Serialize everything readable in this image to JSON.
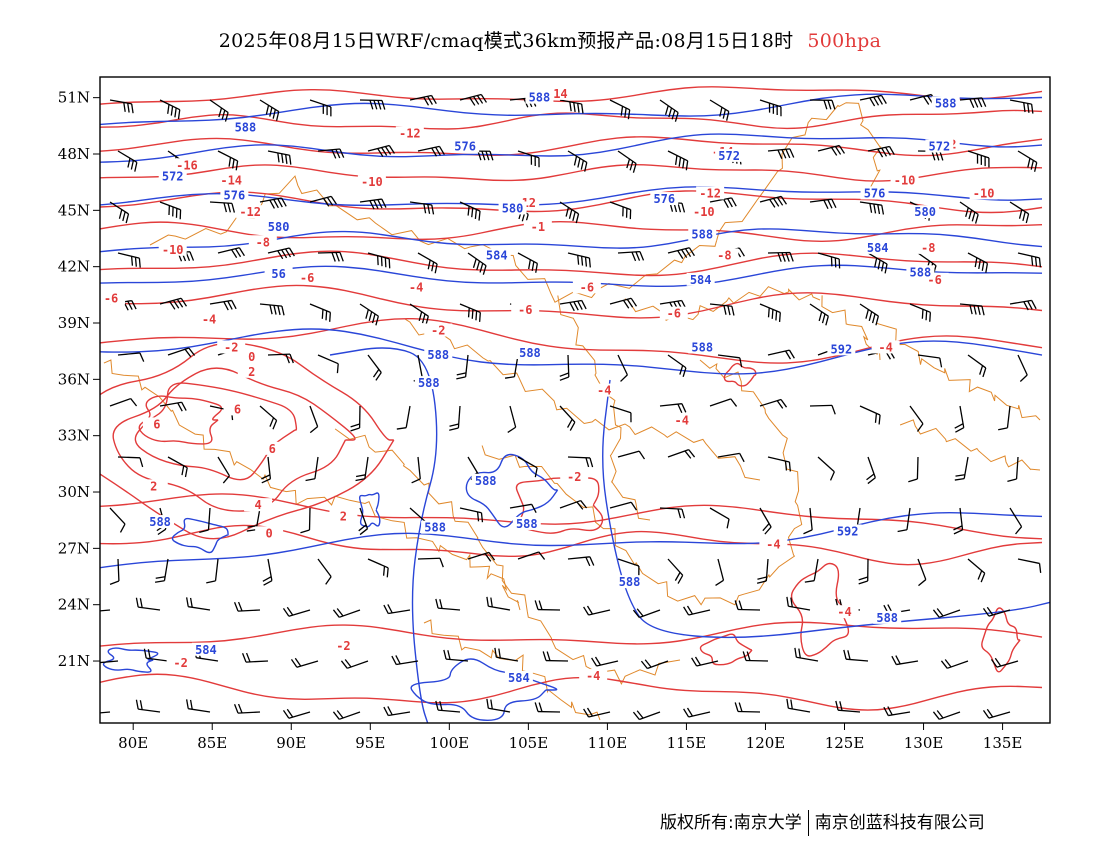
{
  "header": {
    "title": "2025年08月15日WRF/cmaq模式36km预报产品:08月15日18时",
    "level": "500hpa"
  },
  "map": {
    "lat_labels": [
      "51N",
      "48N",
      "45N",
      "42N",
      "39N",
      "36N",
      "33N",
      "30N",
      "27N",
      "24N",
      "21N"
    ],
    "lon_labels": [
      "80E",
      "85E",
      "90E",
      "95E",
      "100E",
      "105E",
      "110E",
      "115E",
      "120E",
      "125E",
      "130E",
      "135E"
    ],
    "colors": {
      "temperature": "#e23b3b",
      "height": "#2a46d8",
      "boundary": "#e0892c",
      "wind": "#000000"
    },
    "temperature_contours": [
      {
        "label": "-14",
        "lon": 106.8,
        "lat": 51.2
      },
      {
        "label": "-12",
        "lon": 97.5,
        "lat": 49.1
      },
      {
        "label": "-14",
        "lon": 117.3,
        "lat": 48.1
      },
      {
        "label": "-12",
        "lon": 131.4,
        "lat": 48.5
      },
      {
        "label": "-16",
        "lon": 83.4,
        "lat": 47.4
      },
      {
        "label": "-14",
        "lon": 86.2,
        "lat": 46.6
      },
      {
        "label": "-10",
        "lon": 95.1,
        "lat": 46.5
      },
      {
        "label": "-10",
        "lon": 128.8,
        "lat": 46.6
      },
      {
        "label": "-12",
        "lon": 116.5,
        "lat": 45.9
      },
      {
        "label": "-10",
        "lon": 133.8,
        "lat": 45.9
      },
      {
        "label": "-12",
        "lon": 104.8,
        "lat": 45.4
      },
      {
        "label": "-12",
        "lon": 87.4,
        "lat": 44.9
      },
      {
        "label": "-10",
        "lon": 116.1,
        "lat": 44.9
      },
      {
        "label": "-1",
        "lon": 105.6,
        "lat": 44.1
      },
      {
        "label": "-10",
        "lon": 82.5,
        "lat": 42.9
      },
      {
        "label": "-8",
        "lon": 88.2,
        "lat": 43.3
      },
      {
        "label": "-8",
        "lon": 117.4,
        "lat": 42.6
      },
      {
        "label": "-8",
        "lon": 130.3,
        "lat": 43.0
      },
      {
        "label": "-6",
        "lon": 91.0,
        "lat": 41.4
      },
      {
        "label": "-4",
        "lon": 97.9,
        "lat": 40.9
      },
      {
        "label": "-6",
        "lon": 108.7,
        "lat": 40.9
      },
      {
        "label": "-6",
        "lon": 130.7,
        "lat": 41.3
      },
      {
        "label": "-6",
        "lon": 78.6,
        "lat": 40.3
      },
      {
        "label": "-6",
        "lon": 104.8,
        "lat": 39.7
      },
      {
        "label": "-6",
        "lon": 114.2,
        "lat": 39.5
      },
      {
        "label": "-4",
        "lon": 84.8,
        "lat": 39.2
      },
      {
        "label": "-2",
        "lon": 99.3,
        "lat": 38.6
      },
      {
        "label": "-2",
        "lon": 86.2,
        "lat": 37.7
      },
      {
        "label": "-4",
        "lon": 127.6,
        "lat": 37.7
      },
      {
        "label": "0",
        "lon": 87.5,
        "lat": 37.2
      },
      {
        "label": "2",
        "lon": 87.5,
        "lat": 36.4
      },
      {
        "label": "-4",
        "lon": 109.8,
        "lat": 35.4
      },
      {
        "label": "6",
        "lon": 86.6,
        "lat": 34.4
      },
      {
        "label": "6",
        "lon": 81.5,
        "lat": 33.6
      },
      {
        "label": "-4",
        "lon": 114.7,
        "lat": 33.8
      },
      {
        "label": "6",
        "lon": 88.8,
        "lat": 32.3
      },
      {
        "label": "-2",
        "lon": 107.9,
        "lat": 30.8
      },
      {
        "label": "2",
        "lon": 81.3,
        "lat": 30.3
      },
      {
        "label": "4",
        "lon": 87.9,
        "lat": 29.3
      },
      {
        "label": "2",
        "lon": 93.3,
        "lat": 28.7
      },
      {
        "label": "0",
        "lon": 88.6,
        "lat": 27.8
      },
      {
        "label": "-4",
        "lon": 120.5,
        "lat": 27.2
      },
      {
        "label": "-4",
        "lon": 125.0,
        "lat": 23.6
      },
      {
        "label": "-2",
        "lon": 93.3,
        "lat": 21.8
      },
      {
        "label": "-2",
        "lon": 83.0,
        "lat": 20.9
      },
      {
        "label": "-4",
        "lon": 109.1,
        "lat": 20.2
      }
    ],
    "height_contours": [
      {
        "label": "588",
        "lon": 105.7,
        "lat": 51.0
      },
      {
        "label": "588",
        "lon": 131.4,
        "lat": 50.7
      },
      {
        "label": "588",
        "lon": 87.1,
        "lat": 49.4
      },
      {
        "label": "572",
        "lon": 131.0,
        "lat": 48.4
      },
      {
        "label": "576",
        "lon": 101.0,
        "lat": 48.4
      },
      {
        "label": "572",
        "lon": 117.7,
        "lat": 47.9
      },
      {
        "label": "572",
        "lon": 82.5,
        "lat": 46.8
      },
      {
        "label": "576",
        "lon": 86.4,
        "lat": 45.8
      },
      {
        "label": "576",
        "lon": 113.6,
        "lat": 45.6
      },
      {
        "label": "576",
        "lon": 126.9,
        "lat": 45.9
      },
      {
        "label": "580",
        "lon": 104.0,
        "lat": 45.1
      },
      {
        "label": "580",
        "lon": 130.1,
        "lat": 44.9
      },
      {
        "label": "580",
        "lon": 89.2,
        "lat": 44.1
      },
      {
        "label": "588",
        "lon": 116.0,
        "lat": 43.7
      },
      {
        "label": "584",
        "lon": 103.0,
        "lat": 42.6
      },
      {
        "label": "584",
        "lon": 127.1,
        "lat": 43.0
      },
      {
        "label": "56",
        "lon": 89.2,
        "lat": 41.6
      },
      {
        "label": "588",
        "lon": 129.8,
        "lat": 41.7
      },
      {
        "label": "584",
        "lon": 115.9,
        "lat": 41.3
      },
      {
        "label": "588",
        "lon": 116.0,
        "lat": 37.7
      },
      {
        "label": "592",
        "lon": 124.8,
        "lat": 37.6
      },
      {
        "label": "588",
        "lon": 99.3,
        "lat": 37.3
      },
      {
        "label": "588",
        "lon": 105.1,
        "lat": 37.4
      },
      {
        "label": "588",
        "lon": 98.7,
        "lat": 35.8
      },
      {
        "label": "588",
        "lon": 102.3,
        "lat": 30.6
      },
      {
        "label": "588",
        "lon": 81.7,
        "lat": 28.4
      },
      {
        "label": "588",
        "lon": 99.1,
        "lat": 28.1
      },
      {
        "label": "588",
        "lon": 104.9,
        "lat": 28.3
      },
      {
        "label": "592",
        "lon": 125.2,
        "lat": 27.9
      },
      {
        "label": "588",
        "lon": 111.4,
        "lat": 25.2
      },
      {
        "label": "588",
        "lon": 127.7,
        "lat": 23.3
      },
      {
        "label": "584",
        "lon": 84.6,
        "lat": 21.6
      },
      {
        "label": "584",
        "lon": 104.4,
        "lat": 20.1
      }
    ]
  },
  "footer": {
    "copyright": "版权所有:南京大学",
    "company": "南京创蓝科技有限公司"
  }
}
